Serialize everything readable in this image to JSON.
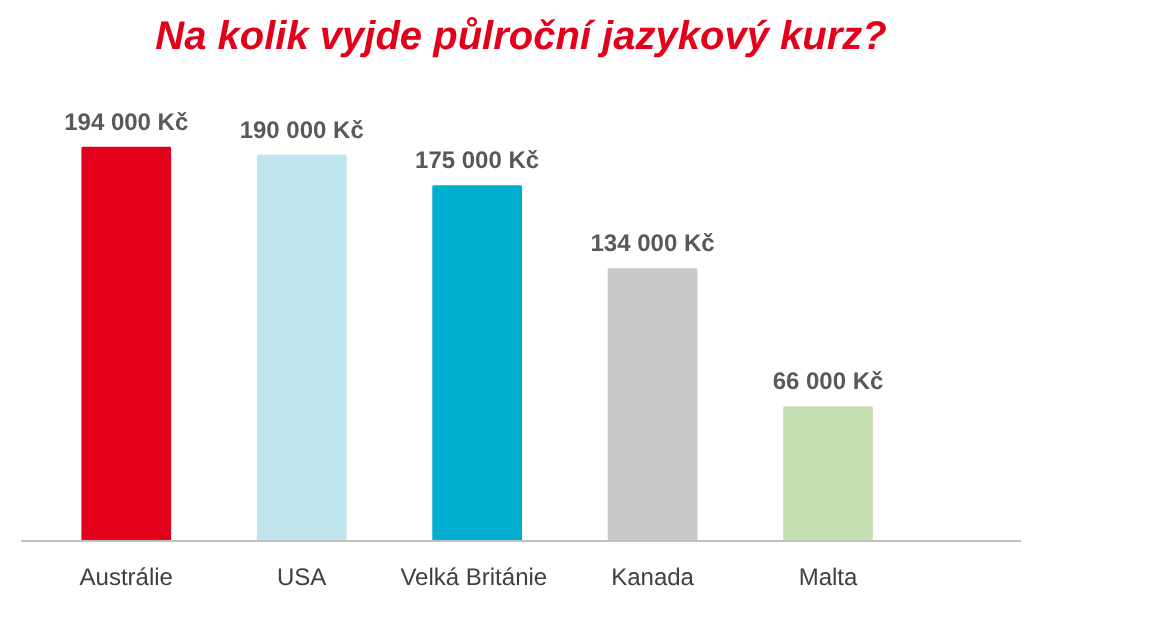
{
  "chart_data": {
    "type": "bar",
    "title": "Na kolik vyjde půlroční jazykový kurz?",
    "categories": [
      "Austrálie",
      "USA",
      "Velká  Británie",
      "Kanada",
      "Malta"
    ],
    "values": [
      194000,
      190000,
      175000,
      134000,
      66000
    ],
    "colors": [
      "#e2001a",
      "#bfe4ed",
      "#00afcf",
      "#c8c8c8",
      "#c6e0b4"
    ],
    "value_labels": [
      "194 000 Kč",
      "190 000 Kč",
      "175 000 Kč",
      "134 000 Kč",
      "66 000 Kč"
    ],
    "grid": false
  }
}
